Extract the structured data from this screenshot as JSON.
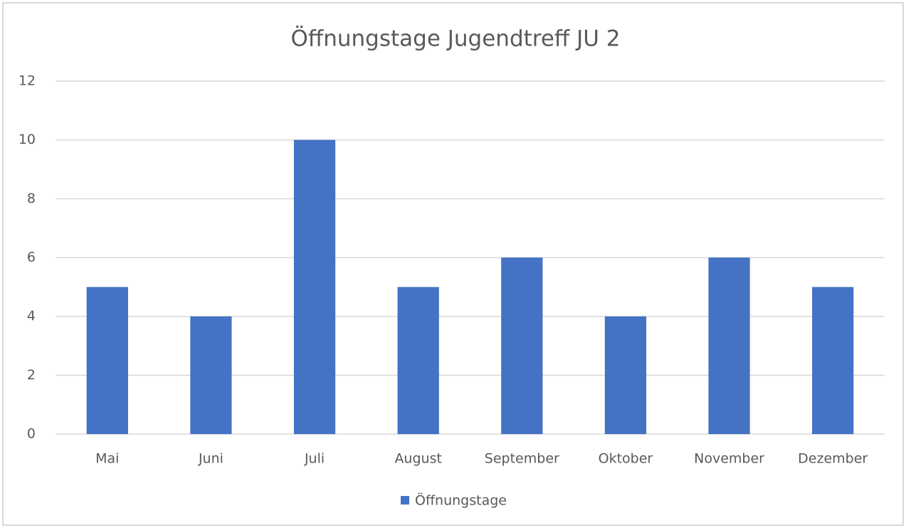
{
  "chart_data": {
    "type": "bar",
    "title": "Öffnungstage Jugendtreff JU 2",
    "categories": [
      "Mai",
      "Juni",
      "Juli",
      "August",
      "September",
      "Oktober",
      "November",
      "Dezember"
    ],
    "series": [
      {
        "name": "Öffnungstage",
        "color": "#4472c4",
        "values": [
          5,
          4,
          10,
          5,
          6,
          4,
          6,
          5
        ]
      }
    ],
    "ylim": [
      0,
      12
    ],
    "yticks": [
      0,
      2,
      4,
      6,
      8,
      10,
      12
    ],
    "grid": true,
    "legend": "bottom"
  }
}
